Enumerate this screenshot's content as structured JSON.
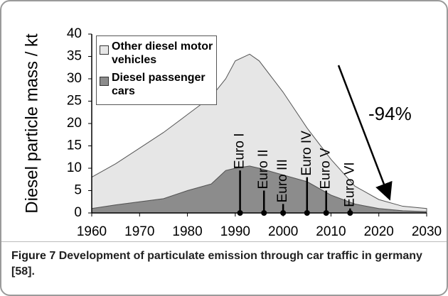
{
  "chart_data": {
    "type": "stacked_area",
    "ylabel": "Diesel particle mass / kt",
    "x": [
      1960,
      1965,
      1970,
      1975,
      1980,
      1985,
      1988,
      1990,
      1993,
      1995,
      2000,
      2005,
      2010,
      2015,
      2020,
      2025,
      2030
    ],
    "series": [
      {
        "name": "Other diesel motor vehicles",
        "color": "#e6e6e6",
        "values": [
          7,
          9.2,
          12,
          14.8,
          17,
          19.5,
          20.5,
          24,
          25,
          24,
          18.5,
          12,
          8,
          4,
          2,
          1,
          0.7
        ]
      },
      {
        "name": "Diesel passenger cars",
        "color": "#8c8c8c",
        "values": [
          1,
          1.8,
          2.5,
          3.2,
          5,
          6.5,
          9.5,
          10,
          10.5,
          10,
          8.5,
          7,
          4,
          2,
          1,
          0.5,
          0.3
        ]
      }
    ],
    "xlim": [
      1960,
      2030
    ],
    "xticks": [
      1960,
      1970,
      1980,
      1990,
      2000,
      2010,
      2020,
      2030
    ],
    "ylim": [
      0,
      40
    ],
    "yticks": [
      0,
      5,
      10,
      15,
      20,
      25,
      30,
      35,
      40
    ],
    "annotations": [
      {
        "label": "Euro I",
        "x": 1991,
        "y": 9.5
      },
      {
        "label": "Euro II",
        "x": 1996,
        "y": 5
      },
      {
        "label": "Euro III",
        "x": 2000,
        "y": 2
      },
      {
        "label": "Euro IV",
        "x": 2005,
        "y": 8
      },
      {
        "label": "Euro V",
        "x": 2009,
        "y": 5
      },
      {
        "label": "Euro VI",
        "x": 2014,
        "y": 1
      }
    ],
    "trend_label": "-94%"
  },
  "caption": {
    "label": "Figure 7",
    "text": "Development of particulate emission through car traffic in germany [58]."
  }
}
